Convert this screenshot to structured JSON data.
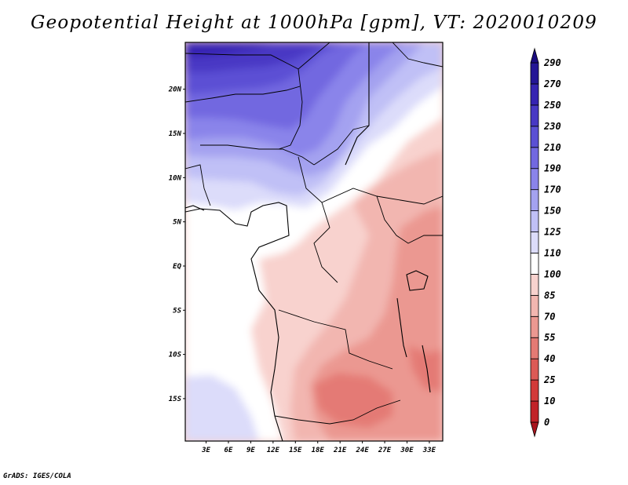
{
  "title": "Geopotential Height at 1000hPa [gpm], VT: 2020010209",
  "footer": "GrADS: IGES/COLA",
  "map": {
    "field": "Geopotential Height",
    "level": "1000hPa",
    "units": "gpm",
    "valid_time": "2020010209",
    "lat_labels": [
      "20N",
      "15N",
      "10N",
      "5N",
      "EQ",
      "5S",
      "10S",
      "15S"
    ],
    "lat_values": [
      20,
      15,
      10,
      5,
      0,
      -5,
      -10,
      -15
    ],
    "lon_labels": [
      "3E",
      "6E",
      "9E",
      "12E",
      "15E",
      "18E",
      "21E",
      "24E",
      "27E",
      "30E",
      "33E"
    ],
    "lon_values": [
      3,
      6,
      9,
      12,
      15,
      18,
      21,
      24,
      27,
      30,
      33
    ],
    "lon_range": [
      0.2,
      34.8
    ],
    "lat_range": [
      -19.8,
      25.3
    ]
  },
  "colorbar": {
    "levels": [
      "0",
      "10",
      "25",
      "40",
      "55",
      "70",
      "85",
      "100",
      "110",
      "125",
      "150",
      "170",
      "190",
      "210",
      "230",
      "250",
      "270",
      "290"
    ],
    "colors": [
      "#a8151e",
      "#c12228",
      "#d23a39",
      "#dc5a56",
      "#e47a74",
      "#eb9891",
      "#f2b6b0",
      "#f8d2ce",
      "#ffffff",
      "#dcdcfa",
      "#c0c0f6",
      "#a4a2f0",
      "#8a84ea",
      "#7268e0",
      "#5b50d4",
      "#4838c4",
      "#3624b2",
      "#241696",
      "#1a0c80"
    ]
  }
}
